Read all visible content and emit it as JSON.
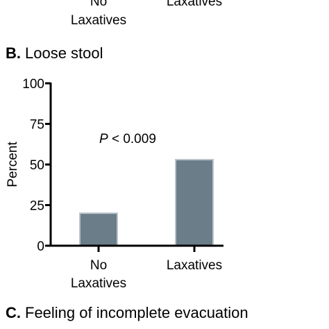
{
  "top_partial": {
    "categories": [
      "No\nLaxatives",
      "Laxatives"
    ]
  },
  "panel_b": {
    "letter": "B.",
    "title": "Loose stool",
    "annotation_p": "P",
    "annotation_rest": " < 0.009"
  },
  "panel_c": {
    "letter": "C.",
    "title": "Feeling of incomplete evacuation"
  },
  "chart_data": {
    "type": "bar",
    "title": "Loose stool",
    "xlabel": "",
    "ylabel": "Percent",
    "categories": [
      "No\nLaxatives",
      "Laxatives"
    ],
    "values": [
      20,
      53
    ],
    "ylim": [
      0,
      100
    ],
    "yticks": [
      0,
      25,
      50,
      75,
      100
    ],
    "annotation": "P < 0.009",
    "bar_color": "#6b7d89",
    "bar_edge_color": "#b9c3cb",
    "grid": false,
    "legend": "none"
  }
}
